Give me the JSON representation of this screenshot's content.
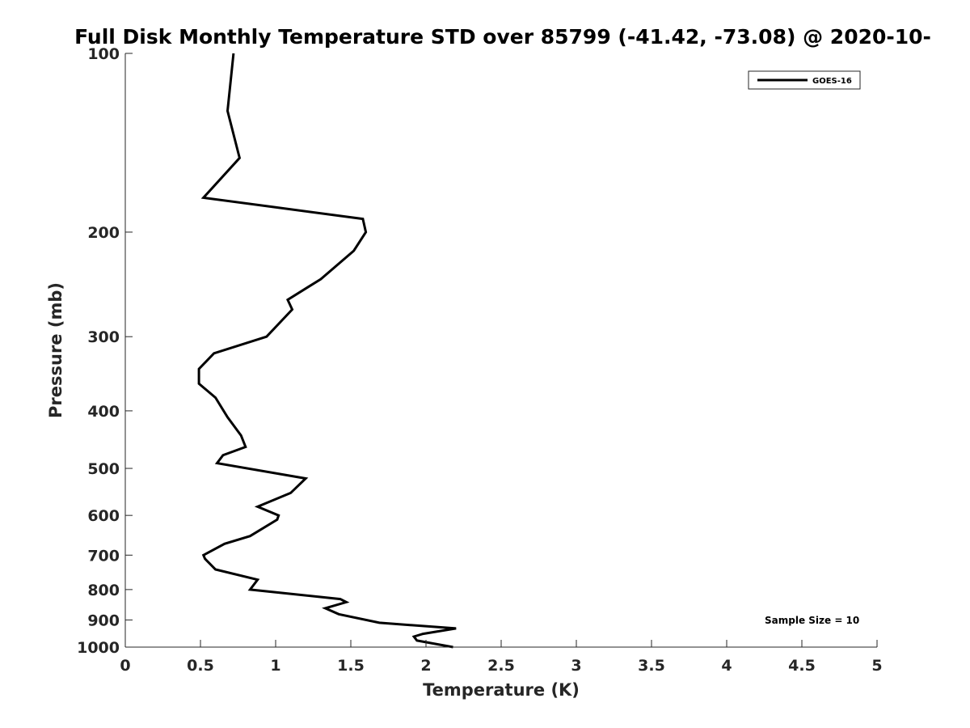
{
  "chart_data": {
    "type": "line",
    "title": "Full Disk Monthly Temperature STD over 85799 (-41.42, -73.08) @ 2020-10-",
    "xlabel": "Temperature (K)",
    "ylabel": "Pressure (mb)",
    "xlim": [
      0,
      5
    ],
    "ylim": [
      100,
      1000
    ],
    "y_scale": "log",
    "y_reversed": true,
    "grid": false,
    "x_ticks": [
      "0",
      "0.5",
      "1",
      "1.5",
      "2",
      "2.5",
      "3",
      "3.5",
      "4",
      "4.5",
      "5"
    ],
    "y_ticks": [
      "100",
      "200",
      "300",
      "400",
      "500",
      "600",
      "700",
      "800",
      "900",
      "1000"
    ],
    "legend": {
      "position": "top-right",
      "entries": [
        "GOES-16"
      ]
    },
    "annotation": "Sample Size = 10",
    "series": [
      {
        "name": "GOES-16",
        "color": "#000000",
        "points": [
          [
            0.72,
            100
          ],
          [
            0.68,
            125
          ],
          [
            0.76,
            150
          ],
          [
            0.52,
            175
          ],
          [
            1.58,
            190
          ],
          [
            1.6,
            200
          ],
          [
            1.52,
            215
          ],
          [
            1.3,
            240
          ],
          [
            1.08,
            260
          ],
          [
            1.11,
            270
          ],
          [
            0.94,
            300
          ],
          [
            0.59,
            320
          ],
          [
            0.49,
            340
          ],
          [
            0.49,
            360
          ],
          [
            0.6,
            380
          ],
          [
            0.68,
            410
          ],
          [
            0.77,
            440
          ],
          [
            0.8,
            460
          ],
          [
            0.65,
            475
          ],
          [
            0.61,
            490
          ],
          [
            1.2,
            520
          ],
          [
            1.1,
            550
          ],
          [
            0.88,
            580
          ],
          [
            1.02,
            600
          ],
          [
            1.01,
            610
          ],
          [
            0.83,
            650
          ],
          [
            0.66,
            670
          ],
          [
            0.52,
            700
          ],
          [
            0.53,
            710
          ],
          [
            0.6,
            740
          ],
          [
            0.88,
            770
          ],
          [
            0.83,
            800
          ],
          [
            1.43,
            830
          ],
          [
            1.47,
            840
          ],
          [
            1.33,
            860
          ],
          [
            1.42,
            880
          ],
          [
            1.69,
            910
          ],
          [
            2.2,
            930
          ],
          [
            1.98,
            950
          ],
          [
            1.92,
            960
          ],
          [
            1.94,
            975
          ],
          [
            2.18,
            1000
          ]
        ]
      }
    ]
  }
}
